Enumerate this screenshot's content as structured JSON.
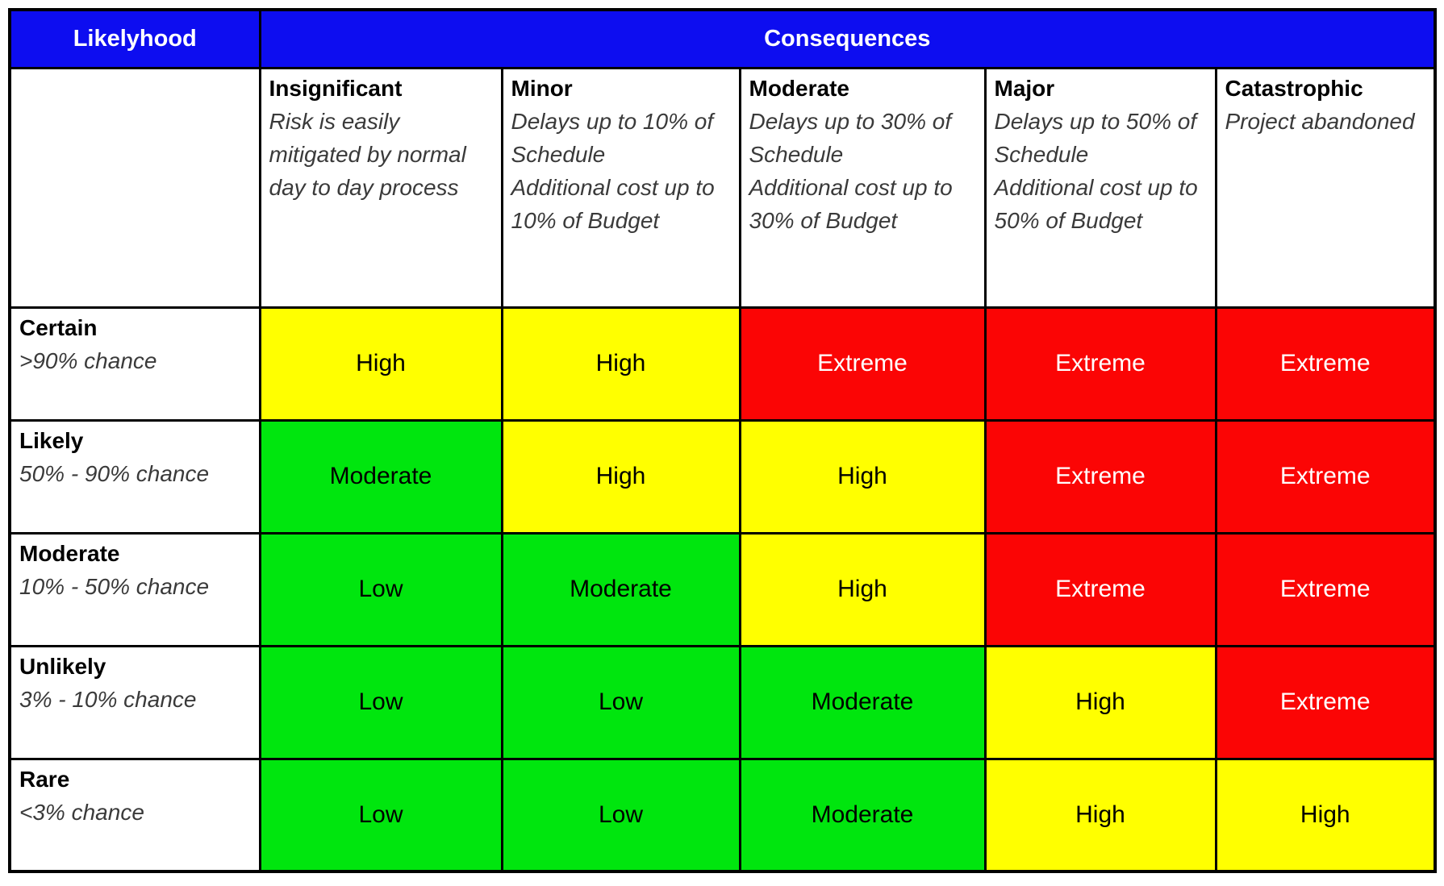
{
  "header": {
    "likelihood": "Likelyhood",
    "consequences": "Consequences"
  },
  "columns": [
    {
      "name": "Insignificant",
      "desc_lines": [
        "Risk is easily mitigated by normal day to day process"
      ]
    },
    {
      "name": "Minor",
      "desc_lines": [
        "Delays up to 10% of Schedule",
        "Additional cost up to 10% of Budget"
      ]
    },
    {
      "name": "Moderate",
      "desc_lines": [
        "Delays up to 30% of Schedule",
        "Additional cost up to 30% of Budget"
      ]
    },
    {
      "name": "Major",
      "desc_lines": [
        "Delays up to 50% of Schedule",
        "Additional cost up to 50% of Budget"
      ]
    },
    {
      "name": "Catastrophic",
      "desc_lines": [
        "Project abandoned"
      ]
    }
  ],
  "rows": [
    {
      "name": "Certain",
      "desc": ">90% chance",
      "cells": [
        {
          "label": "High",
          "level": "high"
        },
        {
          "label": "High",
          "level": "high"
        },
        {
          "label": "Extreme",
          "level": "extreme"
        },
        {
          "label": "Extreme",
          "level": "extreme"
        },
        {
          "label": "Extreme",
          "level": "extreme"
        }
      ]
    },
    {
      "name": "Likely",
      "desc": "50% - 90% chance",
      "cells": [
        {
          "label": "Moderate",
          "level": "moderate"
        },
        {
          "label": "High",
          "level": "high"
        },
        {
          "label": "High",
          "level": "high"
        },
        {
          "label": "Extreme",
          "level": "extreme"
        },
        {
          "label": "Extreme",
          "level": "extreme"
        }
      ]
    },
    {
      "name": "Moderate",
      "desc": "10% - 50% chance",
      "cells": [
        {
          "label": "Low",
          "level": "low"
        },
        {
          "label": "Moderate",
          "level": "moderate"
        },
        {
          "label": "High",
          "level": "high"
        },
        {
          "label": "Extreme",
          "level": "extreme"
        },
        {
          "label": "Extreme",
          "level": "extreme"
        }
      ]
    },
    {
      "name": "Unlikely",
      "desc": "3% - 10% chance",
      "cells": [
        {
          "label": "Low",
          "level": "low"
        },
        {
          "label": "Low",
          "level": "low"
        },
        {
          "label": "Moderate",
          "level": "moderate"
        },
        {
          "label": "High",
          "level": "high"
        },
        {
          "label": "Extreme",
          "level": "extreme"
        }
      ]
    },
    {
      "name": "Rare",
      "desc": "<3% chance",
      "cells": [
        {
          "label": "Low",
          "level": "low"
        },
        {
          "label": "Low",
          "level": "low"
        },
        {
          "label": "Moderate",
          "level": "moderate"
        },
        {
          "label": "High",
          "level": "high"
        },
        {
          "label": "High",
          "level": "high"
        }
      ]
    }
  ],
  "colors": {
    "header_bg": "#0D0DF0",
    "header_text": "#FFFFFF",
    "border": "#000000",
    "levels": {
      "low": {
        "bg": "#00E60E",
        "text": "#000000"
      },
      "moderate": {
        "bg": "#00E60E",
        "text": "#000000"
      },
      "high": {
        "bg": "#FFFF00",
        "text": "#000000"
      },
      "extreme": {
        "bg": "#FB0505",
        "text": "#FFFFFF"
      }
    }
  },
  "chart_data": {
    "type": "heatmap",
    "x_axis_label": "Consequences",
    "y_axis_label": "Likelyhood",
    "x_categories": [
      "Insignificant",
      "Minor",
      "Moderate",
      "Major",
      "Catastrophic"
    ],
    "y_categories": [
      "Certain",
      "Likely",
      "Moderate",
      "Unlikely",
      "Rare"
    ],
    "x_category_descriptions": [
      "Risk is easily mitigated by normal day to day process",
      "Delays up to 10% of Schedule Additional cost up to 10% of Budget",
      "Delays up to 30% of Schedule Additional cost up to 30% of Budget",
      "Delays up to 50% of Schedule Additional cost up to 50% of Budget",
      "Project abandoned"
    ],
    "y_category_descriptions": [
      ">90% chance",
      "50% - 90% chance",
      "10% - 50% chance",
      "3% - 10% chance",
      "<3% chance"
    ],
    "values": [
      [
        "High",
        "High",
        "Extreme",
        "Extreme",
        "Extreme"
      ],
      [
        "Moderate",
        "High",
        "High",
        "Extreme",
        "Extreme"
      ],
      [
        "Low",
        "Moderate",
        "High",
        "Extreme",
        "Extreme"
      ],
      [
        "Low",
        "Low",
        "Moderate",
        "High",
        "Extreme"
      ],
      [
        "Low",
        "Low",
        "Moderate",
        "High",
        "High"
      ]
    ],
    "value_colors": {
      "Low": "#00E60E",
      "Moderate": "#00E60E",
      "High": "#FFFF00",
      "Extreme": "#FB0505"
    },
    "legend_position": "none",
    "grid": true
  }
}
